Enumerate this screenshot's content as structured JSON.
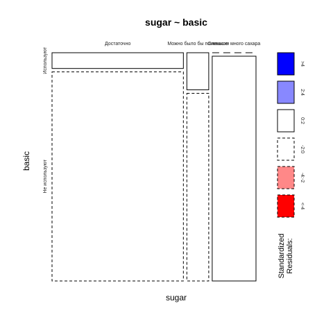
{
  "chart_data": {
    "type": "mosaic",
    "title": "sugar ~ basic",
    "xlabel": "sugar",
    "ylabel": "basic",
    "x_categories": [
      "Достаточно",
      "Можно было бы поменьше",
      "Слишком много сахара"
    ],
    "y_categories": [
      "Используют",
      "Не используют"
    ],
    "column_proportions": [
      0.6,
      0.1,
      0.2
    ],
    "cells": [
      {
        "sugar": "Достаточно",
        "basic": "Используют",
        "row_share": 0.07,
        "residual_range": "0:2"
      },
      {
        "sugar": "Достаточно",
        "basic": "Не используют",
        "row_share": 0.93,
        "residual_range": "-2:0"
      },
      {
        "sugar": "Можно было бы поменьше",
        "basic": "Используют",
        "row_share": 0.165,
        "residual_range": "0:2"
      },
      {
        "sugar": "Можно было бы поменьше",
        "basic": "Не используют",
        "row_share": 0.835,
        "residual_range": "-2:0"
      },
      {
        "sugar": "Слишком много сахара",
        "basic": "Используют",
        "row_share": 0.0,
        "residual_range": "-2:0"
      },
      {
        "sugar": "Слишком много сахара",
        "basic": "Не используют",
        "row_share": 1.0,
        "residual_range": "0:2"
      }
    ],
    "legend": {
      "title_line1": "Standardized",
      "title_line2": "Residuals:",
      "placement": "right",
      "entries": [
        {
          "label": ">4",
          "fill": "#0000FF",
          "dashed": false
        },
        {
          "label": "2:4",
          "fill": "#8888FF",
          "dashed": false
        },
        {
          "label": "0:2",
          "fill": "#FFFFFF",
          "dashed": false
        },
        {
          "label": "-2:0",
          "fill": "#FFFFFF",
          "dashed": true
        },
        {
          "label": "-4:-2",
          "fill": "#FF8888",
          "dashed": true
        },
        {
          "label": "<-4",
          "fill": "#FF0000",
          "dashed": true
        }
      ]
    }
  }
}
